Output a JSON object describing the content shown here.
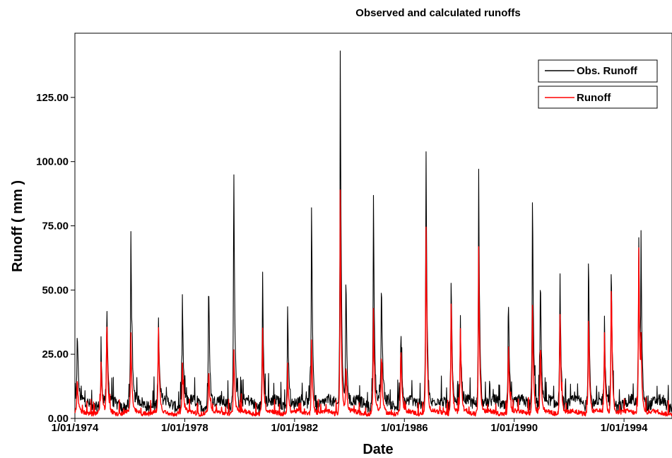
{
  "chart_data": {
    "type": "line",
    "title": "Observed and calculated runoffs",
    "xlabel": "Date",
    "ylabel": "Runoff ( mm )",
    "xlim": [
      "1974-01-01",
      "1995-10-01"
    ],
    "ylim": [
      0,
      150
    ],
    "x_ticks": [
      "1/01/1974",
      "1/01/1978",
      "1/01/1982",
      "1/01/1986",
      "1/01/1990",
      "1/01/1994"
    ],
    "y_ticks": [
      "0.00",
      "25.00",
      "50.00",
      "75.00",
      "100.00",
      "125.00"
    ],
    "y_tick_values": [
      0,
      25,
      50,
      75,
      100,
      125
    ],
    "legend_position": "top-right",
    "baseline": {
      "observed": 5,
      "calculated": 2
    },
    "series": [
      {
        "name": "Obs. Runoff",
        "color": "#000000",
        "peaks": [
          [
            "1974-02-01",
            32
          ],
          [
            "1974-12-15",
            21
          ],
          [
            "1975-03-01",
            40
          ],
          [
            "1976-01-15",
            72
          ],
          [
            "1977-01-15",
            37
          ],
          [
            "1977-12-01",
            43
          ],
          [
            "1978-11-15",
            55
          ],
          [
            "1979-10-15",
            104
          ],
          [
            "1980-11-01",
            58
          ],
          [
            "1981-10-01",
            43
          ],
          [
            "1982-08-15",
            85
          ],
          [
            "1983-09-01",
            148
          ],
          [
            "1983-11-15",
            55
          ],
          [
            "1984-11-15",
            87
          ],
          [
            "1985-03-01",
            52
          ],
          [
            "1985-11-15",
            33
          ],
          [
            "1986-10-15",
            113
          ],
          [
            "1987-09-15",
            57
          ],
          [
            "1988-01-15",
            35
          ],
          [
            "1988-09-15",
            98
          ],
          [
            "1989-10-15",
            49
          ],
          [
            "1990-09-01",
            89
          ],
          [
            "1990-12-15",
            56
          ],
          [
            "1991-09-01",
            58
          ],
          [
            "1992-09-15",
            65
          ],
          [
            "1993-04-15",
            31
          ],
          [
            "1993-07-15",
            58
          ],
          [
            "1994-07-15",
            70
          ],
          [
            "1994-08-15",
            59
          ]
        ]
      },
      {
        "name": "Runoff",
        "color": "#ff0000",
        "peaks": [
          [
            "1974-02-01",
            13
          ],
          [
            "1974-12-15",
            21
          ],
          [
            "1975-03-01",
            40
          ],
          [
            "1976-01-15",
            32
          ],
          [
            "1977-01-15",
            37
          ],
          [
            "1977-12-01",
            20
          ],
          [
            "1978-11-15",
            18
          ],
          [
            "1979-10-15",
            28
          ],
          [
            "1980-11-01",
            36
          ],
          [
            "1981-10-01",
            17
          ],
          [
            "1982-08-15",
            31
          ],
          [
            "1983-09-01",
            87
          ],
          [
            "1983-11-15",
            20
          ],
          [
            "1984-11-15",
            42
          ],
          [
            "1985-03-01",
            25
          ],
          [
            "1985-11-15",
            29
          ],
          [
            "1986-10-15",
            80
          ],
          [
            "1987-09-15",
            50
          ],
          [
            "1988-01-15",
            35
          ],
          [
            "1988-09-15",
            68
          ],
          [
            "1989-10-15",
            30
          ],
          [
            "1990-09-01",
            47
          ],
          [
            "1990-12-15",
            30
          ],
          [
            "1991-09-01",
            44
          ],
          [
            "1992-09-15",
            42
          ],
          [
            "1993-04-15",
            31
          ],
          [
            "1993-07-15",
            58
          ],
          [
            "1994-07-15",
            71
          ],
          [
            "1994-08-15",
            25
          ]
        ]
      }
    ]
  }
}
